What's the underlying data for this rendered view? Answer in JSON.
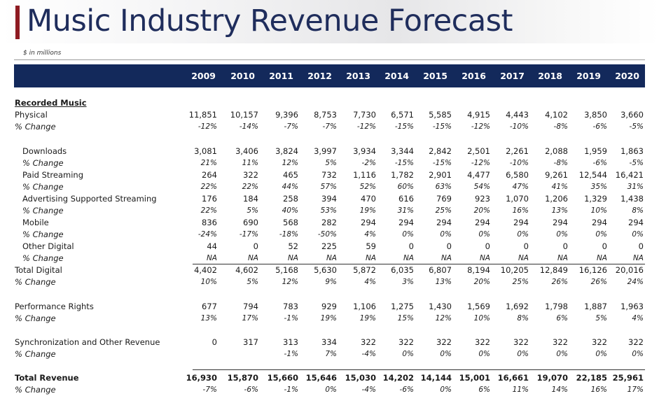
{
  "title": "Music Industry Revenue Forecast",
  "subtitle": "$ in millions",
  "years": [
    "2009",
    "2010",
    "2011",
    "2012",
    "2013",
    "2014",
    "2015",
    "2016",
    "2017",
    "2018",
    "2019",
    "2020"
  ],
  "sections": [
    {
      "heading": "Recorded Music",
      "rows": [
        {
          "label": "Physical",
          "values": [
            "11,851",
            "10,157",
            "9,396",
            "8,753",
            "7,730",
            "6,571",
            "5,585",
            "4,915",
            "4,443",
            "4,102",
            "3,850",
            "3,660"
          ],
          "change": [
            "-12%",
            "-14%",
            "-7%",
            "-7%",
            "-12%",
            "-15%",
            "-15%",
            "-12%",
            "-10%",
            "-8%",
            "-6%",
            "-5%"
          ]
        }
      ]
    },
    {
      "rows": [
        {
          "label": "Downloads",
          "values": [
            "3,081",
            "3,406",
            "3,824",
            "3,997",
            "3,934",
            "3,344",
            "2,842",
            "2,501",
            "2,261",
            "2,088",
            "1,959",
            "1,863"
          ],
          "change": [
            "21%",
            "11%",
            "12%",
            "5%",
            "-2%",
            "-15%",
            "-15%",
            "-12%",
            "-10%",
            "-8%",
            "-6%",
            "-5%"
          ]
        },
        {
          "label": "Paid Streaming",
          "values": [
            "264",
            "322",
            "465",
            "732",
            "1,116",
            "1,782",
            "2,901",
            "4,477",
            "6,580",
            "9,261",
            "12,544",
            "16,421"
          ],
          "change": [
            "22%",
            "22%",
            "44%",
            "57%",
            "52%",
            "60%",
            "63%",
            "54%",
            "47%",
            "41%",
            "35%",
            "31%"
          ]
        },
        {
          "label": "Advertising Supported Streaming",
          "values": [
            "176",
            "184",
            "258",
            "394",
            "470",
            "616",
            "769",
            "923",
            "1,070",
            "1,206",
            "1,329",
            "1,438"
          ],
          "change": [
            "22%",
            "5%",
            "40%",
            "53%",
            "19%",
            "31%",
            "25%",
            "20%",
            "16%",
            "13%",
            "10%",
            "8%"
          ]
        },
        {
          "label": "Mobile",
          "values": [
            "836",
            "690",
            "568",
            "282",
            "294",
            "294",
            "294",
            "294",
            "294",
            "294",
            "294",
            "294"
          ],
          "change": [
            "-24%",
            "-17%",
            "-18%",
            "-50%",
            "4%",
            "0%",
            "0%",
            "0%",
            "0%",
            "0%",
            "0%",
            "0%"
          ]
        },
        {
          "label": "Other Digital",
          "values": [
            "44",
            "0",
            "52",
            "225",
            "59",
            "0",
            "0",
            "0",
            "0",
            "0",
            "0",
            "0"
          ],
          "change": [
            "NA",
            "NA",
            "NA",
            "NA",
            "NA",
            "NA",
            "NA",
            "NA",
            "NA",
            "NA",
            "NA",
            "NA"
          ]
        }
      ],
      "total": {
        "label": "Total Digital",
        "values": [
          "4,402",
          "4,602",
          "5,168",
          "5,630",
          "5,872",
          "6,035",
          "6,807",
          "8,194",
          "10,205",
          "12,849",
          "16,126",
          "20,016"
        ],
        "change": [
          "10%",
          "5%",
          "12%",
          "9%",
          "4%",
          "3%",
          "13%",
          "20%",
          "25%",
          "26%",
          "26%",
          "24%"
        ]
      }
    },
    {
      "rows": [
        {
          "label": "Performance Rights",
          "values": [
            "677",
            "794",
            "783",
            "929",
            "1,106",
            "1,275",
            "1,430",
            "1,569",
            "1,692",
            "1,798",
            "1,887",
            "1,963"
          ],
          "change": [
            "13%",
            "17%",
            "-1%",
            "19%",
            "19%",
            "15%",
            "12%",
            "10%",
            "8%",
            "6%",
            "5%",
            "4%"
          ]
        }
      ]
    },
    {
      "rows": [
        {
          "label": "Synchronization and Other Revenue",
          "values": [
            "0",
            "317",
            "313",
            "334",
            "322",
            "322",
            "322",
            "322",
            "322",
            "322",
            "322",
            "322"
          ],
          "change": [
            "",
            "",
            "-1%",
            "7%",
            "-4%",
            "0%",
            "0%",
            "0%",
            "0%",
            "0%",
            "0%",
            "0%"
          ]
        }
      ]
    }
  ],
  "grand_total": {
    "label": "Total Revenue",
    "values": [
      "16,930",
      "15,870",
      "15,660",
      "15,646",
      "15,030",
      "14,202",
      "14,144",
      "15,001",
      "16,661",
      "19,070",
      "22,185",
      "25,961"
    ],
    "change": [
      "-7%",
      "-6%",
      "-1%",
      "0%",
      "-4%",
      "-6%",
      "0%",
      "6%",
      "11%",
      "14%",
      "16%",
      "17%"
    ]
  },
  "change_label": "% Change",
  "colors": {
    "header": "#13295b",
    "accent": "#8e1b22",
    "title": "#1f2d5c"
  }
}
